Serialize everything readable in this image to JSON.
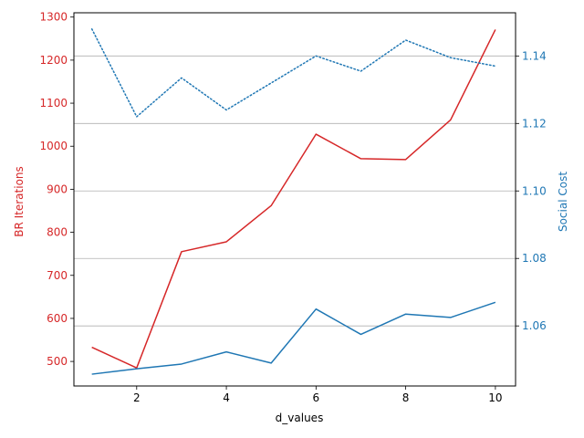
{
  "chart_data": {
    "type": "line",
    "title": "",
    "xlabel": "d_values",
    "ylabel_left": "BR Iterations",
    "ylabel_right": "Social Cost",
    "x": [
      1,
      2,
      3,
      4,
      5,
      6,
      7,
      8,
      9,
      10
    ],
    "xlim": [
      0.6,
      10.45
    ],
    "xticks": [
      2,
      4,
      6,
      8,
      10
    ],
    "ylim_left": [
      443,
      1310
    ],
    "yticks_left": [
      500,
      600,
      700,
      800,
      900,
      1000,
      1100,
      1200,
      1300
    ],
    "ylim_right": [
      1.0422,
      1.1528
    ],
    "yticks_right": [
      1.06,
      1.08,
      1.1,
      1.12,
      1.14
    ],
    "grid": "horizontal (right axis)",
    "colors": {
      "left": "#d62728",
      "right": "#1f77b4"
    },
    "series": [
      {
        "axis": "left",
        "color": "#d62728",
        "style": "solid",
        "values": [
          533,
          485,
          755,
          778,
          862,
          1028,
          971,
          969,
          1061,
          1271
        ]
      },
      {
        "axis": "right",
        "color": "#1f77b4",
        "style": "solid",
        "values": [
          1.0457,
          1.0473,
          1.0487,
          1.0523,
          1.049,
          1.065,
          1.0575,
          1.0635,
          1.0625,
          1.067
        ]
      },
      {
        "axis": "right",
        "color": "#1f77b4",
        "style": "dotted",
        "values": [
          1.148,
          1.122,
          1.1335,
          1.124,
          1.132,
          1.14,
          1.1355,
          1.1447,
          1.1395,
          1.137
        ]
      }
    ]
  }
}
